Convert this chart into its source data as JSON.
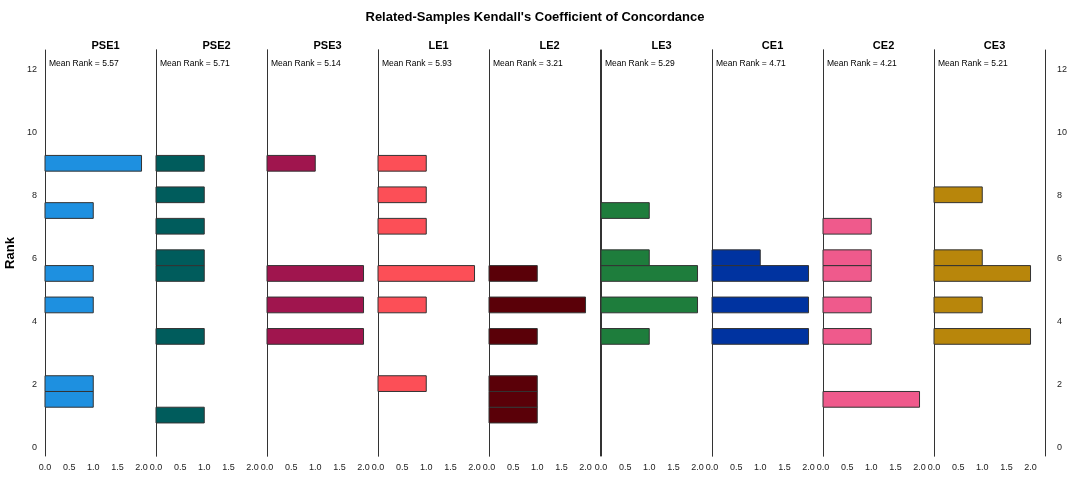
{
  "chart_data": [
    {
      "type": "histogram",
      "orientation": "horizontal",
      "title": "PSE1",
      "ylabel": "Rank",
      "annotations": [
        "Related-Samples Kendall's Coefficient of Concordance",
        "Mean Rank = 5.57"
      ],
      "color": "#1e90e0",
      "bins": [
        0.75,
        1.25,
        1.75,
        2.25,
        2.75,
        3.25,
        3.75,
        4.25,
        4.75,
        5.25,
        5.75,
        6.25,
        6.75,
        7.25,
        7.75,
        8.25,
        8.75,
        9.25
      ],
      "values": [
        0,
        1,
        1,
        0,
        0,
        0,
        0,
        1,
        0,
        1,
        0,
        0,
        0,
        1,
        0,
        0,
        2
      ],
      "xlim": [
        0,
        2.3
      ],
      "xticks": [
        {
          "value": 0,
          "label": "0.0"
        },
        {
          "value": 0.5,
          "label": "0.5"
        },
        {
          "value": 1,
          "label": "1.0"
        },
        {
          "value": 1.5,
          "label": "1.5"
        },
        {
          "value": 2,
          "label": "2.0"
        }
      ],
      "ylim": [
        -0.3,
        12.6
      ],
      "yticks": [
        0,
        2,
        4,
        6,
        8,
        10,
        12
      ]
    },
    {
      "type": "histogram",
      "orientation": "horizontal",
      "title": "PSE2",
      "annotations": [
        "Mean Rank = 5.71"
      ],
      "color": "#005c5c",
      "bins": [
        0.75,
        1.25,
        1.75,
        2.25,
        2.75,
        3.25,
        3.75,
        4.25,
        4.75,
        5.25,
        5.75,
        6.25,
        6.75,
        7.25,
        7.75,
        8.25,
        8.75,
        9.25
      ],
      "values": [
        1,
        0,
        0,
        0,
        0,
        1,
        0,
        0,
        0,
        1,
        1,
        0,
        1,
        0,
        1,
        0,
        1
      ],
      "xlim": [
        0,
        2.3
      ],
      "xticks": [
        {
          "value": 0,
          "label": "0.0"
        },
        {
          "value": 0.5,
          "label": "0.5"
        },
        {
          "value": 1,
          "label": "1.0"
        },
        {
          "value": 1.5,
          "label": "1.5"
        },
        {
          "value": 2,
          "label": "2.0"
        }
      ],
      "ylim": [
        -0.3,
        12.6
      ],
      "yticks": [
        0,
        2,
        4,
        6,
        8,
        10,
        12
      ],
      "tick_labels": "x"
    },
    {
      "type": "histogram",
      "orientation": "horizontal",
      "title": "PSE3",
      "annotations": [
        "Mean Rank = 5.14"
      ],
      "color": "#a0154e",
      "bins": [
        0.75,
        1.25,
        1.75,
        2.25,
        2.75,
        3.25,
        3.75,
        4.25,
        4.75,
        5.25,
        5.75,
        6.25,
        6.75,
        7.25,
        7.75,
        8.25,
        8.75,
        9.25
      ],
      "values": [
        0,
        0,
        0,
        0,
        0,
        2,
        0,
        2,
        0,
        2,
        0,
        0,
        0,
        0,
        0,
        0,
        1
      ],
      "xlim": [
        0,
        2.3
      ],
      "xticks": [
        {
          "value": 0,
          "label": "0.0"
        },
        {
          "value": 0.5,
          "label": "0.5"
        },
        {
          "value": 1,
          "label": "1.0"
        },
        {
          "value": 1.5,
          "label": "1.5"
        },
        {
          "value": 2,
          "label": "2.0"
        }
      ],
      "ylim": [
        -0.3,
        12.6
      ],
      "yticks": [
        0,
        2,
        4,
        6,
        8,
        10,
        12
      ],
      "tick_labels": "x"
    },
    {
      "type": "histogram",
      "orientation": "horizontal",
      "title": "LE1",
      "annotations": [
        "Mean Rank = 5.93"
      ],
      "color": "#fc4f57",
      "bins": [
        0.75,
        1.25,
        1.75,
        2.25,
        2.75,
        3.25,
        3.75,
        4.25,
        4.75,
        5.25,
        5.75,
        6.25,
        6.75,
        7.25,
        7.75,
        8.25,
        8.75,
        9.25
      ],
      "values": [
        0,
        0,
        1,
        0,
        0,
        0,
        0,
        1,
        0,
        2,
        0,
        0,
        1,
        0,
        1,
        0,
        1
      ],
      "xlim": [
        0,
        2.3
      ],
      "xticks": [
        {
          "value": 0,
          "label": "0.0"
        },
        {
          "value": 0.5,
          "label": "0.5"
        },
        {
          "value": 1,
          "label": "1.0"
        },
        {
          "value": 1.5,
          "label": "1.5"
        },
        {
          "value": 2,
          "label": "2.0"
        }
      ],
      "ylim": [
        -0.3,
        12.6
      ],
      "yticks": [
        0,
        2,
        4,
        6,
        8,
        10,
        12
      ],
      "tick_labels": "x"
    },
    {
      "type": "histogram",
      "orientation": "horizontal",
      "title": "LE2",
      "annotations": [
        "Mean Rank = 3.21"
      ],
      "color": "#5a0008",
      "bins": [
        0.75,
        1.25,
        1.75,
        2.25,
        2.75,
        3.25,
        3.75,
        4.25,
        4.75,
        5.25,
        5.75,
        6.25,
        6.75,
        7.25,
        7.75,
        8.25,
        8.75,
        9.25
      ],
      "values": [
        1,
        1,
        1,
        0,
        0,
        1,
        0,
        2,
        0,
        1,
        0,
        0,
        0,
        0,
        0,
        0,
        0
      ],
      "xlim": [
        0,
        2.3
      ],
      "xticks": [
        {
          "value": 0,
          "label": "0.0"
        },
        {
          "value": 0.5,
          "label": "0.5"
        },
        {
          "value": 1,
          "label": "1.0"
        },
        {
          "value": 1.5,
          "label": "1.5"
        },
        {
          "value": 2,
          "label": "2.0"
        }
      ],
      "ylim": [
        -0.3,
        12.6
      ],
      "yticks": [
        0,
        2,
        4,
        6,
        8,
        10,
        12
      ],
      "tick_labels": "x"
    },
    {
      "type": "histogram",
      "orientation": "horizontal",
      "title": "LE3",
      "annotations": [
        "Mean Rank = 5.29"
      ],
      "color": "#1e7d3c",
      "bins": [
        0.75,
        1.25,
        1.75,
        2.25,
        2.75,
        3.25,
        3.75,
        4.25,
        4.75,
        5.25,
        5.75,
        6.25,
        6.75,
        7.25,
        7.75,
        8.25,
        8.75,
        9.25
      ],
      "values": [
        0,
        0,
        0,
        0,
        0,
        1,
        0,
        2,
        0,
        2,
        1,
        0,
        0,
        1,
        0,
        0,
        0
      ],
      "xlim": [
        0,
        2.3
      ],
      "xticks": [
        {
          "value": 0,
          "label": "0.0"
        },
        {
          "value": 0.5,
          "label": "0.5"
        },
        {
          "value": 1,
          "label": "1.0"
        },
        {
          "value": 1.5,
          "label": "1.5"
        },
        {
          "value": 2,
          "label": "2.0"
        }
      ],
      "ylim": [
        -0.3,
        12.6
      ],
      "yticks": [
        0,
        2,
        4,
        6,
        8,
        10,
        12
      ],
      "tick_labels": "x"
    },
    {
      "type": "histogram",
      "orientation": "horizontal",
      "title": "CE1",
      "annotations": [
        "Mean Rank = 4.71"
      ],
      "color": "#0033a0",
      "bins": [
        0.75,
        1.25,
        1.75,
        2.25,
        2.75,
        3.25,
        3.75,
        4.25,
        4.75,
        5.25,
        5.75,
        6.25,
        6.75,
        7.25,
        7.75,
        8.25,
        8.75,
        9.25
      ],
      "values": [
        0,
        0,
        0,
        0,
        0,
        2,
        0,
        2,
        0,
        2,
        1,
        0,
        0,
        0,
        0,
        0,
        0
      ],
      "xlim": [
        0,
        2.3
      ],
      "xticks": [
        {
          "value": 0,
          "label": "0.0"
        },
        {
          "value": 0.5,
          "label": "0.5"
        },
        {
          "value": 1,
          "label": "1.0"
        },
        {
          "value": 1.5,
          "label": "1.5"
        },
        {
          "value": 2,
          "label": "2.0"
        }
      ],
      "ylim": [
        -0.3,
        12.6
      ],
      "yticks": [
        0,
        2,
        4,
        6,
        8,
        10,
        12
      ],
      "tick_labels": "x"
    },
    {
      "type": "histogram",
      "orientation": "horizontal",
      "title": "CE2",
      "annotations": [
        "Mean Rank = 4.21"
      ],
      "color": "#ef5a8c",
      "bins": [
        0.75,
        1.25,
        1.75,
        2.25,
        2.75,
        3.25,
        3.75,
        4.25,
        4.75,
        5.25,
        5.75,
        6.25,
        6.75,
        7.25,
        7.75,
        8.25,
        8.75,
        9.25
      ],
      "values": [
        0,
        2,
        0,
        0,
        0,
        1,
        0,
        1,
        0,
        1,
        1,
        0,
        1,
        0,
        0,
        0,
        0
      ],
      "xlim": [
        0,
        2.3
      ],
      "xticks": [
        {
          "value": 0,
          "label": "0.0"
        },
        {
          "value": 0.5,
          "label": "0.5"
        },
        {
          "value": 1,
          "label": "1.0"
        },
        {
          "value": 1.5,
          "label": "1.5"
        },
        {
          "value": 2,
          "label": "2.0"
        }
      ],
      "ylim": [
        -0.3,
        12.6
      ],
      "yticks": [
        0,
        2,
        4,
        6,
        8,
        10,
        12
      ],
      "tick_labels": "x"
    },
    {
      "type": "histogram",
      "orientation": "horizontal",
      "title": "CE3",
      "annotations": [
        "Mean Rank = 5.21"
      ],
      "color": "#b8860b",
      "bins": [
        0.75,
        1.25,
        1.75,
        2.25,
        2.75,
        3.25,
        3.75,
        4.25,
        4.75,
        5.25,
        5.75,
        6.25,
        6.75,
        7.25,
        7.75,
        8.25,
        8.75,
        9.25
      ],
      "values": [
        0,
        0,
        0,
        0,
        0,
        2,
        0,
        1,
        0,
        2,
        1,
        0,
        0,
        0,
        1,
        0,
        0
      ],
      "xlim": [
        0,
        2.3
      ],
      "xticks": [
        {
          "value": 0,
          "label": "0.0"
        },
        {
          "value": 0.5,
          "label": "0.5"
        },
        {
          "value": 1,
          "label": "1.0"
        },
        {
          "value": 1.5,
          "label": "1.5"
        },
        {
          "value": 2,
          "label": "2.0"
        }
      ],
      "ylim": [
        -0.3,
        12.6
      ],
      "yticks": [
        0,
        2,
        4,
        6,
        8,
        10,
        12
      ]
    }
  ]
}
